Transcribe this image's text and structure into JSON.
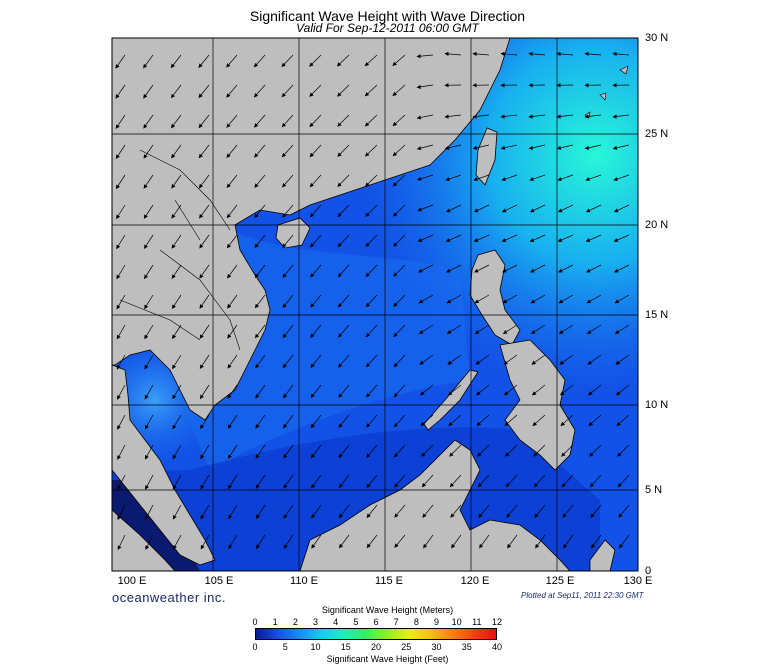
{
  "title": "Significant Wave Height with Wave Direction",
  "subtitle": "Valid For Sep-12-2011 06:00 GMT",
  "brand": "oceanweather inc.",
  "plotted_note": "Plotted at Sep11, 2011 22:30 GMT",
  "lat_labels": [
    "30 N",
    "25 N",
    "20 N",
    "15 N",
    "10 N",
    "5 N",
    "0"
  ],
  "lon_labels": [
    "100 E",
    "105 E",
    "110 E",
    "115 E",
    "120 E",
    "125 E",
    "130 E"
  ],
  "legend": {
    "title_meters": "Significant Wave Height (Meters)",
    "title_feet": "Significant Wave Height (Feet)",
    "meter_ticks": [
      "0",
      "1",
      "2",
      "3",
      "4",
      "5",
      "6",
      "7",
      "8",
      "9",
      "10",
      "11",
      "12"
    ],
    "feet_ticks": [
      "0",
      "5",
      "10",
      "15",
      "20",
      "25",
      "30",
      "35",
      "40"
    ],
    "colors": [
      "#0a1a8c",
      "#1550e8",
      "#1a8cf0",
      "#10d0f0",
      "#18f0c0",
      "#30f060",
      "#90f020",
      "#e8f010",
      "#f8c010",
      "#f88010",
      "#f84010",
      "#e81010"
    ]
  },
  "colors": {
    "land": "#bebebe",
    "ocean_deep": "#0a2fd8",
    "ocean_mid": "#1a6ef0",
    "ocean_high": "#16e4e8"
  }
}
